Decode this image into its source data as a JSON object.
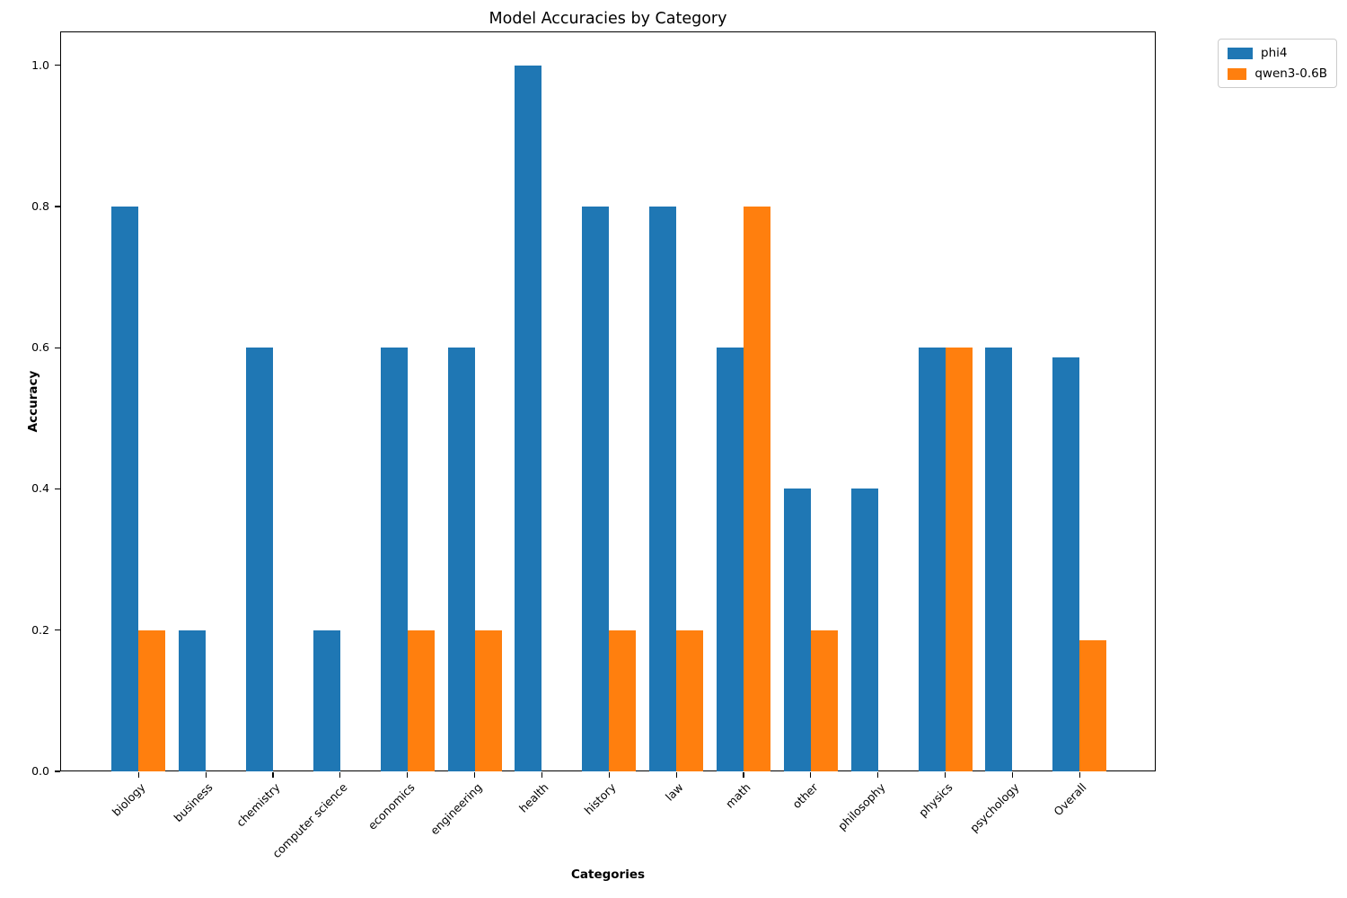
{
  "figure": {
    "title": "Model Accuracies by Category",
    "xlabel": "Categories",
    "ylabel": "Accuracy"
  },
  "legend": {
    "items": [
      {
        "label": "phi4",
        "color": "#1f77b4"
      },
      {
        "label": "qwen3-0.6B",
        "color": "#ff7f0e"
      }
    ]
  },
  "chart_data": {
    "type": "bar",
    "title": "Model Accuracies by Category",
    "xlabel": "Categories",
    "ylabel": "Accuracy",
    "categories": [
      "biology",
      "business",
      "chemistry",
      "computer science",
      "economics",
      "engineering",
      "health",
      "history",
      "law",
      "math",
      "other",
      "philosophy",
      "physics",
      "psychology",
      "Overall"
    ],
    "series": [
      {
        "name": "phi4",
        "color": "#1f77b4",
        "values": [
          0.8,
          0.2,
          0.6,
          0.2,
          0.6,
          0.6,
          1.0,
          0.8,
          0.8,
          0.6,
          0.4,
          0.4,
          0.6,
          0.6,
          0.586
        ]
      },
      {
        "name": "qwen3-0.6B",
        "color": "#ff7f0e",
        "values": [
          0.2,
          0.0,
          0.0,
          0.0,
          0.2,
          0.2,
          0.0,
          0.2,
          0.2,
          0.8,
          0.2,
          0.0,
          0.6,
          0.0,
          0.186
        ]
      }
    ],
    "yticks": [
      "0.0",
      "0.2",
      "0.4",
      "0.6",
      "0.8",
      "1.0"
    ],
    "ylim": [
      0,
      1.048
    ],
    "grid": false,
    "legend_position": "outside-upper-right",
    "xtick_rotation": 45
  }
}
